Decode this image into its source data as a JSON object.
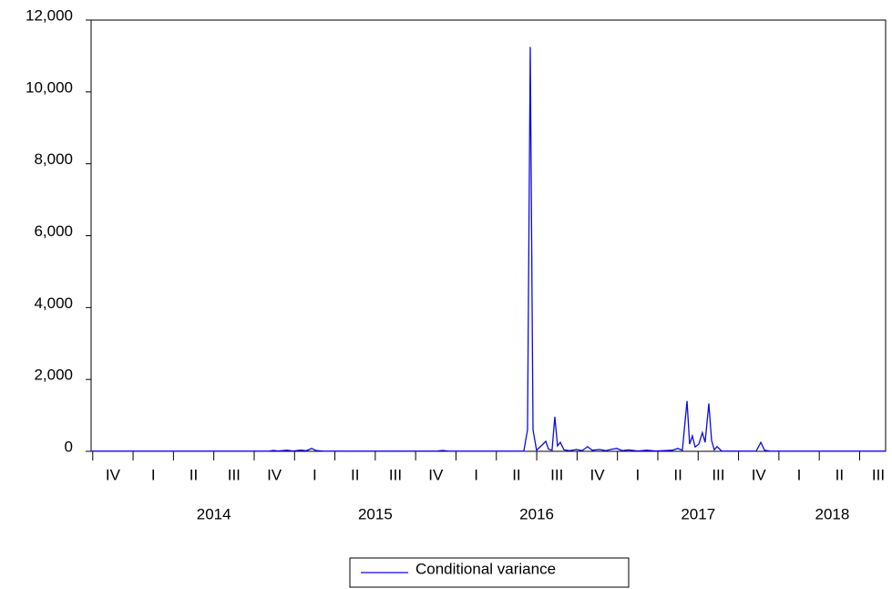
{
  "chart_data": {
    "type": "line",
    "x": [
      2013.74,
      2014.84,
      2014.869,
      2014.897,
      2014.953,
      2014.993,
      2015.038,
      2015.072,
      2015.106,
      2015.134,
      2015.179,
      2015.884,
      2015.918,
      2015.952,
      2016.42,
      2016.443,
      2016.46,
      2016.477,
      2016.499,
      2016.539,
      2016.556,
      2016.573,
      2016.595,
      2016.612,
      2016.629,
      2016.646,
      2016.669,
      2016.703,
      2016.748,
      2016.782,
      2016.815,
      2016.844,
      2016.889,
      2016.928,
      2016.968,
      2016.996,
      2017.03,
      2017.069,
      2017.126,
      2017.182,
      2017.239,
      2017.34,
      2017.374,
      2017.402,
      2017.431,
      2017.447,
      2017.464,
      2017.481,
      2017.504,
      2017.526,
      2017.543,
      2017.566,
      2017.583,
      2017.6,
      2017.617,
      2017.645,
      2017.859,
      2017.888,
      2017.911,
      2017.945,
      2018.661
    ],
    "series": [
      {
        "name": "Conditional variance",
        "color": "#0a0ae6",
        "values": [
          5,
          5,
          25,
          10,
          30,
          10,
          35,
          15,
          80,
          20,
          5,
          10,
          25,
          5,
          5,
          600,
          11250,
          600,
          30,
          200,
          280,
          60,
          30,
          960,
          150,
          250,
          40,
          20,
          50,
          20,
          130,
          30,
          50,
          20,
          60,
          80,
          20,
          40,
          10,
          30,
          10,
          30,
          80,
          30,
          1400,
          200,
          430,
          120,
          200,
          520,
          250,
          1330,
          300,
          40,
          130,
          10,
          5,
          250,
          30,
          5,
          5
        ]
      }
    ],
    "xlim": [
      2013.74,
      2018.661
    ],
    "xticks": [
      {
        "value": 2013.75,
        "label": "IV"
      },
      {
        "value": 2014.0,
        "label": "I"
      },
      {
        "value": 2014.25,
        "label": "II"
      },
      {
        "value": 2014.5,
        "label": "III"
      },
      {
        "value": 2014.75,
        "label": "IV"
      },
      {
        "value": 2015.0,
        "label": "I"
      },
      {
        "value": 2015.25,
        "label": "II"
      },
      {
        "value": 2015.5,
        "label": "III"
      },
      {
        "value": 2015.75,
        "label": "IV"
      },
      {
        "value": 2016.0,
        "label": "I"
      },
      {
        "value": 2016.25,
        "label": "II"
      },
      {
        "value": 2016.5,
        "label": "III"
      },
      {
        "value": 2016.75,
        "label": "IV"
      },
      {
        "value": 2017.0,
        "label": "I"
      },
      {
        "value": 2017.25,
        "label": "II"
      },
      {
        "value": 2017.5,
        "label": "III"
      },
      {
        "value": 2017.75,
        "label": "IV"
      },
      {
        "value": 2018.0,
        "label": "I"
      },
      {
        "value": 2018.25,
        "label": "II"
      },
      {
        "value": 2018.5,
        "label": "III"
      }
    ],
    "xyears": [
      2014,
      2015,
      2016,
      2017,
      2018
    ],
    "ylim": [
      0,
      12000
    ],
    "yticks": [
      {
        "value": 0,
        "label": "0"
      },
      {
        "value": 2000,
        "label": "2,000"
      },
      {
        "value": 4000,
        "label": "4,000"
      },
      {
        "value": 6000,
        "label": "6,000"
      },
      {
        "value": 8000,
        "label": "8,000"
      },
      {
        "value": 10000,
        "label": "10,000"
      },
      {
        "value": 12000,
        "label": "12,000"
      }
    ],
    "legend": "bottom"
  }
}
